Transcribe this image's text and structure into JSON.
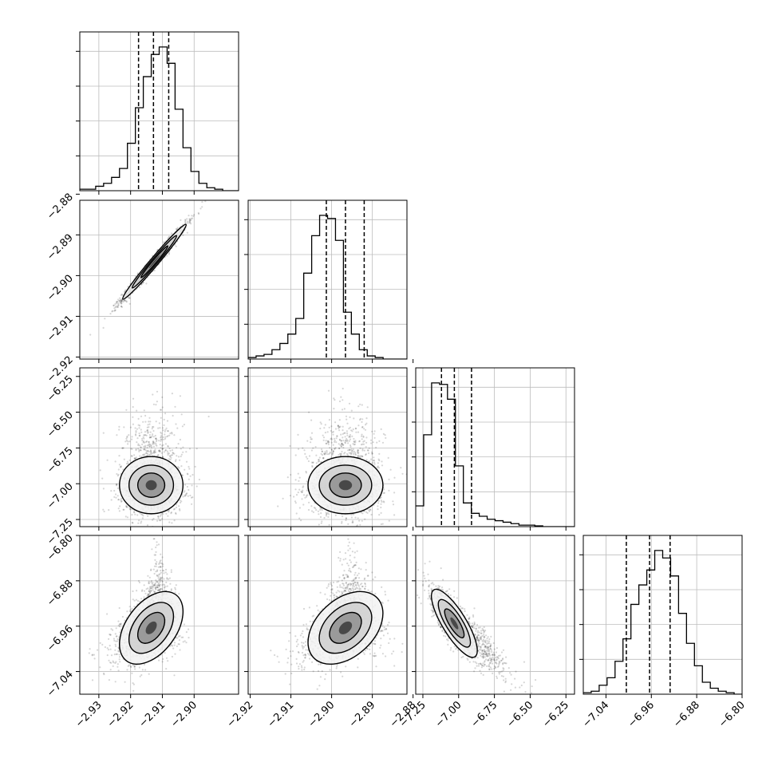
{
  "chart_data": {
    "type": "corner",
    "grid": true,
    "parameters": [
      {
        "range": [
          -2.936,
          -2.886
        ],
        "ticks": [
          -2.93,
          -2.92,
          -2.91,
          -2.9
        ],
        "tick_labels": [
          "−2.93",
          "−2.92",
          "−2.91",
          "−2.90"
        ],
        "quantiles": [
          -2.9175,
          -2.9128,
          -2.908
        ],
        "histogram": [
          0.01,
          0.01,
          0.03,
          0.05,
          0.09,
          0.15,
          0.32,
          0.56,
          0.77,
          0.92,
          0.97,
          0.86,
          0.55,
          0.29,
          0.13,
          0.05,
          0.02,
          0.01,
          0.0,
          0.0
        ]
      },
      {
        "range": [
          -2.9205,
          -2.8815
        ],
        "ticks": [
          -2.92,
          -2.91,
          -2.9,
          -2.89,
          -2.88
        ],
        "tick_labels": [
          "−2.92",
          "−2.91",
          "−2.90",
          "−2.89",
          "−2.88"
        ],
        "quantiles": [
          -2.9013,
          -2.8966,
          -2.892
        ],
        "histogram": [
          0.01,
          0.02,
          0.03,
          0.06,
          0.1,
          0.16,
          0.26,
          0.55,
          0.79,
          0.92,
          0.9,
          0.76,
          0.3,
          0.16,
          0.06,
          0.02,
          0.01,
          0.0,
          0.0,
          0.0
        ]
      },
      {
        "range": [
          -7.3,
          -6.19
        ],
        "ticks": [
          -7.25,
          -7.0,
          -6.75,
          -6.5,
          -6.25
        ],
        "tick_labels": [
          "−7.25",
          "−7.00",
          "−6.75",
          "−6.50",
          "−6.25"
        ],
        "quantiles": [
          -7.12,
          -7.03,
          -6.91
        ],
        "histogram": [
          0.14,
          0.62,
          0.97,
          0.96,
          0.86,
          0.41,
          0.16,
          0.09,
          0.07,
          0.05,
          0.04,
          0.03,
          0.02,
          0.01,
          0.01,
          0.005,
          0.0,
          0.0,
          0.0,
          0.0
        ]
      },
      {
        "range": [
          -7.08,
          -6.8
        ],
        "ticks": [
          -7.04,
          -6.96,
          -6.88,
          -6.8
        ],
        "tick_labels": [
          "−7.04",
          "−6.96",
          "−6.88",
          "−6.80"
        ],
        "quantiles": [
          -7.0041,
          -6.9631,
          -6.9269
        ],
        "histogram": [
          0.01,
          0.02,
          0.06,
          0.11,
          0.22,
          0.37,
          0.6,
          0.73,
          0.83,
          0.96,
          0.91,
          0.79,
          0.54,
          0.34,
          0.19,
          0.08,
          0.04,
          0.02,
          0.01,
          0.0
        ]
      }
    ],
    "pairs": [
      {
        "row": 1,
        "col": 0,
        "center": [
          -2.9125,
          -2.8966
        ],
        "sd": [
          0.005,
          0.0046
        ],
        "rho": 0.985,
        "cloud": "blob"
      },
      {
        "row": 2,
        "col": 0,
        "center": [
          -2.9135,
          -7.01
        ],
        "sd": [
          0.005,
          0.1
        ],
        "rho": 0.0,
        "cloud": "skew-up"
      },
      {
        "row": 2,
        "col": 1,
        "center": [
          -2.8966,
          -7.01
        ],
        "sd": [
          0.0046,
          0.1
        ],
        "rho": 0.0,
        "cloud": "skew-up"
      },
      {
        "row": 3,
        "col": 0,
        "center": [
          -2.9135,
          -6.963
        ],
        "sd": [
          0.005,
          0.032
        ],
        "rho": 0.45,
        "cloud": "triangle"
      },
      {
        "row": 3,
        "col": 1,
        "center": [
          -2.8966,
          -6.963
        ],
        "sd": [
          0.0046,
          0.032
        ],
        "rho": 0.4,
        "cloud": "triangle"
      },
      {
        "row": 3,
        "col": 2,
        "center": [
          -7.03,
          -6.955
        ],
        "sd": [
          0.08,
          0.03
        ],
        "rho": -0.8,
        "cloud": "banana"
      }
    ]
  }
}
